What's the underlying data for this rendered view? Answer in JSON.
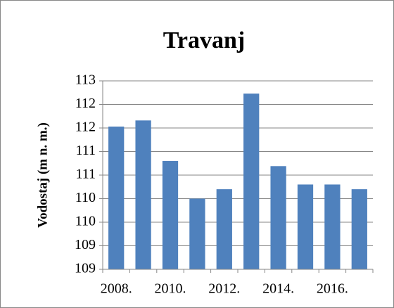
{
  "chart_data": {
    "type": "bar",
    "title": "Travanj",
    "y_label": "Vodostaj (m n. m.)",
    "categories": [
      "2008.",
      null,
      "2010.",
      null,
      "2012.",
      null,
      "2014.",
      null,
      "2016.",
      null
    ],
    "values": [
      111.53,
      111.66,
      110.8,
      110.0,
      110.2,
      112.23,
      110.69,
      110.3,
      110.3,
      110.2
    ],
    "color": "#4f81bd",
    "ylim": [
      108.5,
      112.5
    ],
    "yticks": [
      {
        "value": 108.5,
        "label": "109"
      },
      109,
      {
        "value": 109.5,
        "label": "110"
      },
      110,
      {
        "value": 110.5,
        "label": "111"
      },
      111,
      {
        "value": 111.5,
        "label": "112"
      },
      112,
      {
        "value": 112.5,
        "label": "113"
      }
    ],
    "grid": true
  }
}
